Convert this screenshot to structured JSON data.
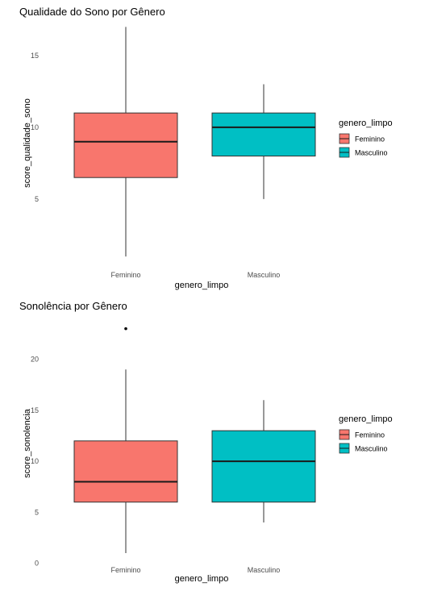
{
  "legend": {
    "title": "genero_limpo",
    "entries": [
      {
        "label": "Feminino",
        "color": "#F8766D"
      },
      {
        "label": "Masculino",
        "color": "#00BFC4"
      }
    ]
  },
  "chart_data": [
    {
      "type": "boxplot",
      "title": "Qualidade do Sono por Gênero",
      "xlabel": "genero_limpo",
      "ylabel": "score_qualidade_sono",
      "categories": [
        "Feminino",
        "Masculino"
      ],
      "ylim": [
        0.5,
        17.3
      ],
      "yticks": [
        5,
        10,
        15
      ],
      "grid": false,
      "legend_position": "right",
      "boxes": [
        {
          "category": "Feminino",
          "min": 1,
          "q1": 6.5,
          "median": 9,
          "q3": 11,
          "max": 17,
          "outliers": [],
          "color": "#F8766D"
        },
        {
          "category": "Masculino",
          "min": 5,
          "q1": 8,
          "median": 10,
          "q3": 11,
          "max": 13,
          "outliers": [],
          "color": "#00BFC4"
        }
      ]
    },
    {
      "type": "boxplot",
      "title": "Sonolência por Gênero",
      "xlabel": "genero_limpo",
      "ylabel": "score_sonolencia",
      "categories": [
        "Feminino",
        "Masculino"
      ],
      "ylim": [
        -0.5,
        24
      ],
      "yticks": [
        0,
        5,
        10,
        15,
        20
      ],
      "grid": false,
      "legend_position": "right",
      "boxes": [
        {
          "category": "Feminino",
          "min": 1,
          "q1": 6,
          "median": 8,
          "q3": 12,
          "max": 19,
          "outliers": [
            23
          ],
          "color": "#F8766D"
        },
        {
          "category": "Masculino",
          "min": 4,
          "q1": 6,
          "median": 10,
          "q3": 13,
          "max": 16,
          "outliers": [],
          "color": "#00BFC4"
        }
      ]
    }
  ]
}
